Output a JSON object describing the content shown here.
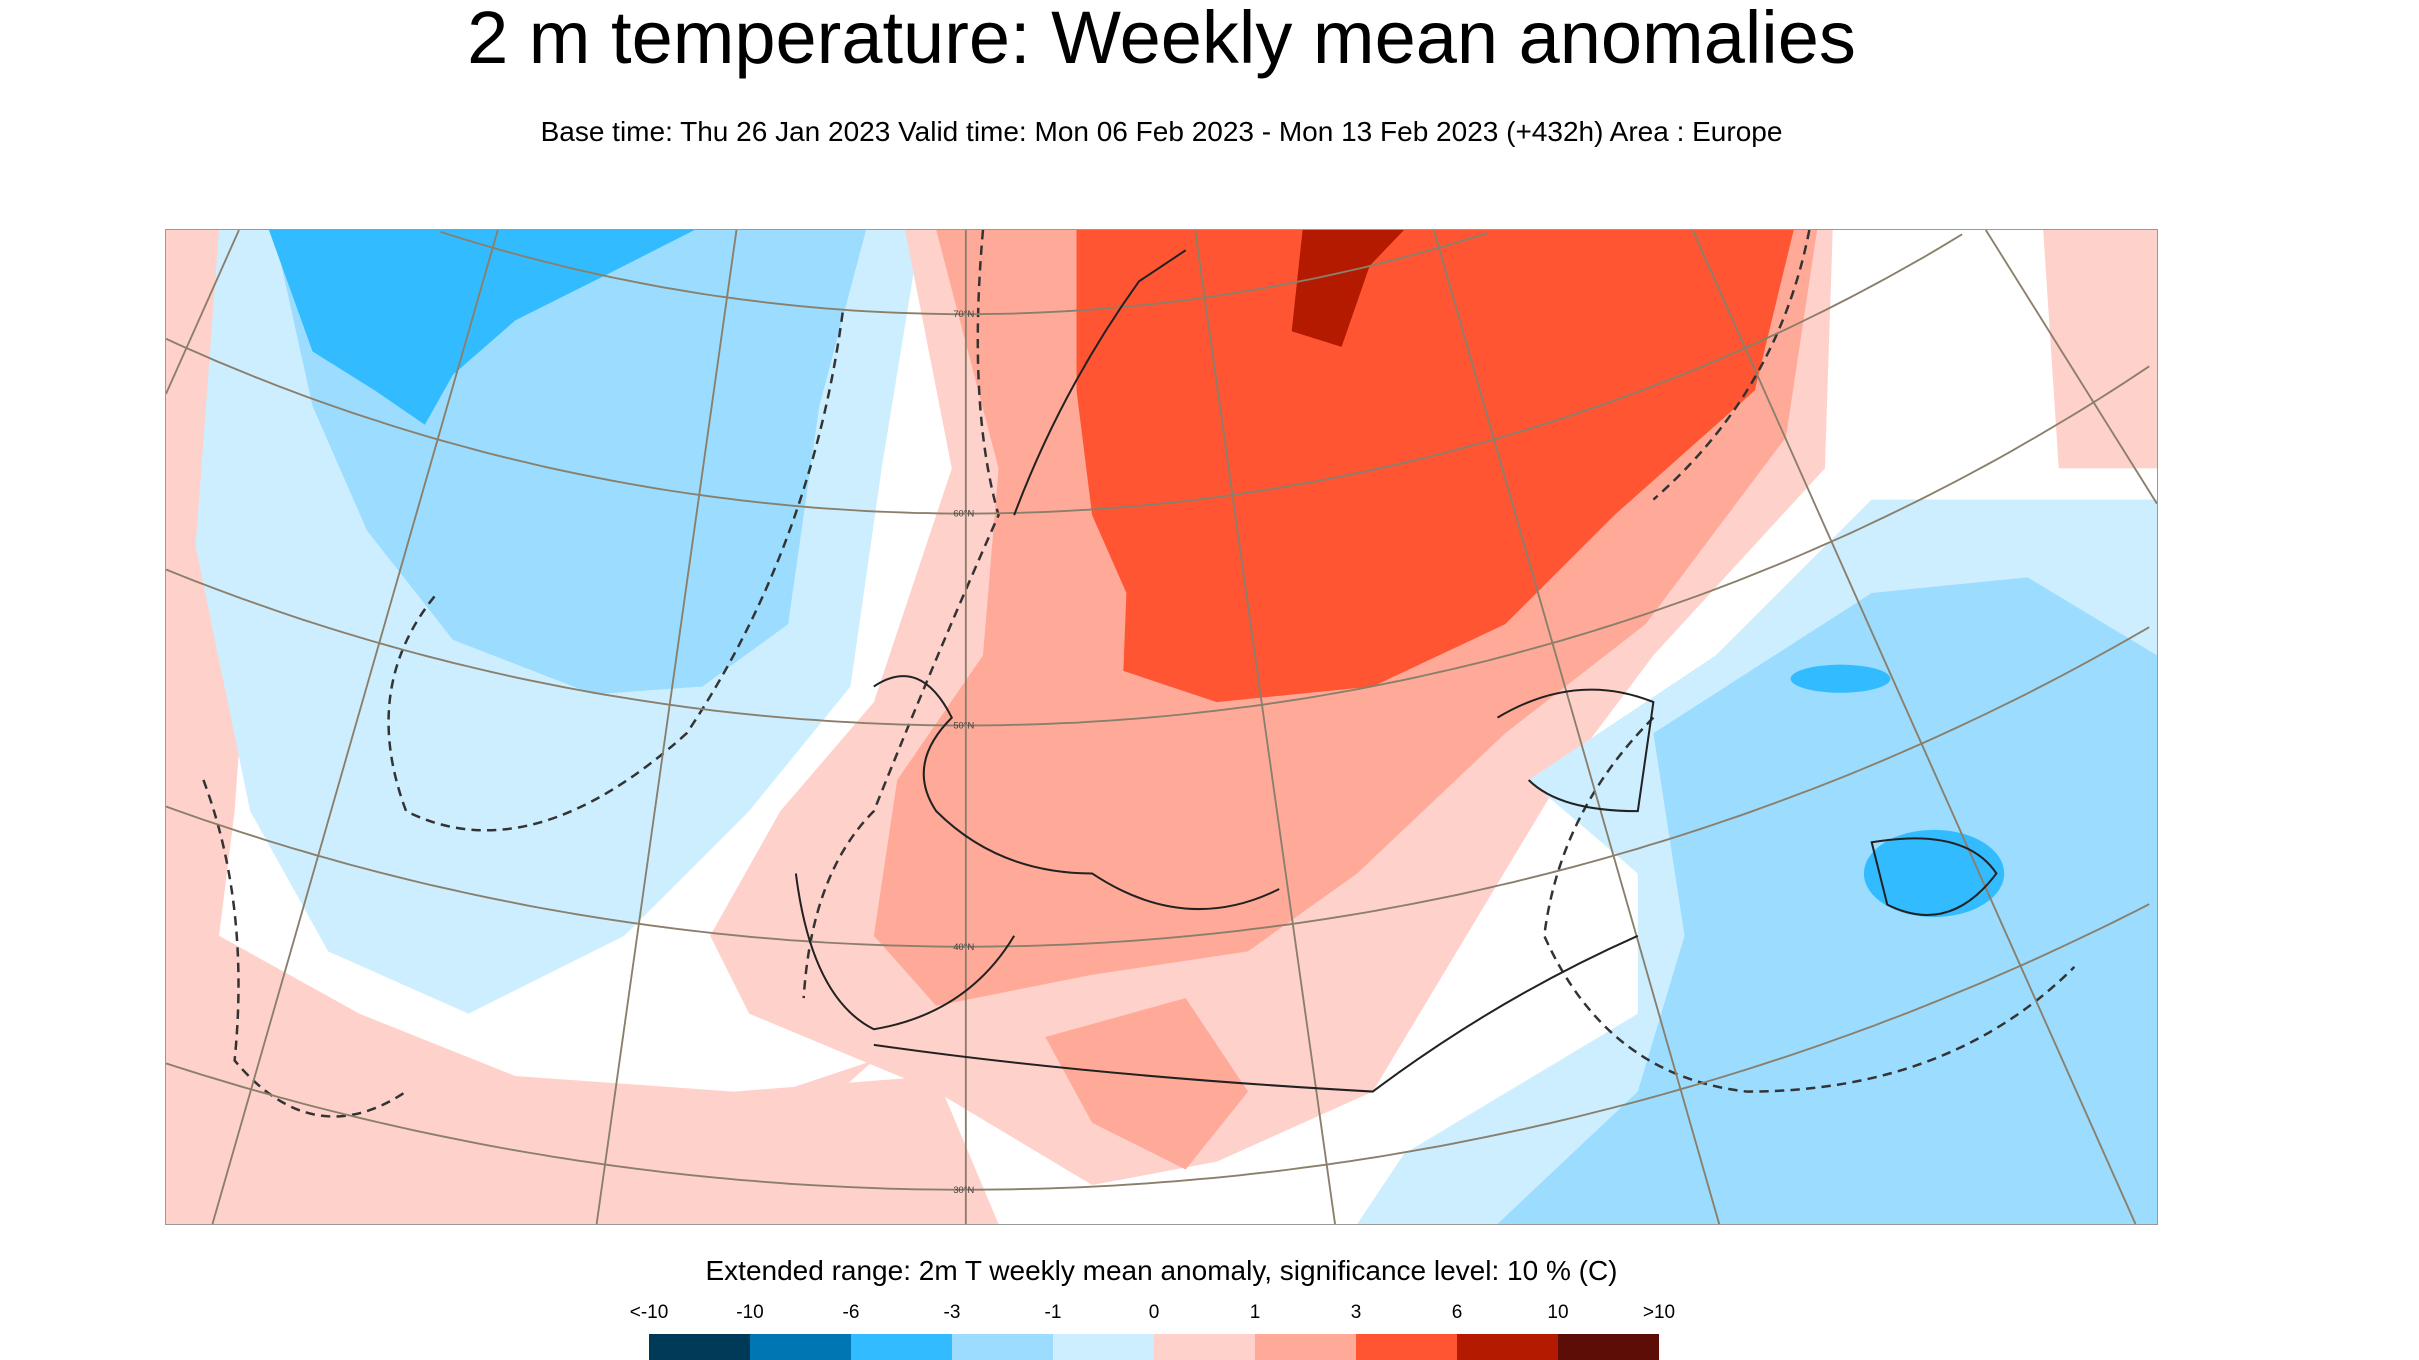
{
  "title": "2 m temperature: Weekly mean anomalies",
  "subtitle": "Base time: Thu 26 Jan 2023 Valid time: Mon 06 Feb 2023 - Mon 13 Feb 2023 (+432h) Area : Europe",
  "map": {
    "area": "Europe",
    "latitude_labels": [
      "70°N",
      "60°N",
      "50°N",
      "40°N",
      "30°N"
    ],
    "colors": {
      "strong_blue": "#33bbff",
      "medium_blue": "#9bdcff",
      "light_blue": "#cceeff",
      "light_pink": "#ffd1cb",
      "salmon": "#ffaa99",
      "red": "#ff5533",
      "dark_red": "#b31a00"
    }
  },
  "legend": {
    "title": "Extended range: 2m T weekly mean anomaly, significance level: 10 % (C)",
    "labels": [
      "<-10",
      "-10",
      "-6",
      "-3",
      "-1",
      "0",
      "1",
      "3",
      "6",
      "10",
      ">10"
    ],
    "colors": [
      "#003a59",
      "#0077b3",
      "#33bbff",
      "#9bdcff",
      "#cceeff",
      "#ffd1cb",
      "#ffaa99",
      "#ff5533",
      "#b31a00",
      "#5c0d05"
    ]
  }
}
